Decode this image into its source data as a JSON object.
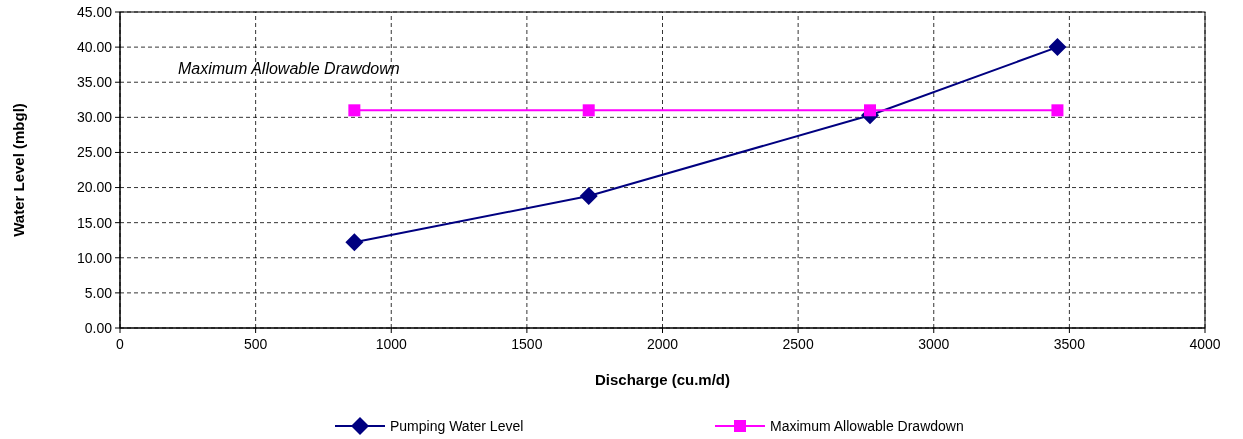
{
  "chart_data": {
    "type": "line",
    "xlabel": "Discharge (cu.m/d)",
    "ylabel": "Water Level (mbgl)",
    "annotations": [
      "Maximum Allowable Drawdown"
    ],
    "xlim": [
      0,
      4000
    ],
    "xticks": [
      0,
      500,
      1000,
      1500,
      2000,
      2500,
      3000,
      3500,
      4000
    ],
    "ylim": [
      0,
      45
    ],
    "yticks": [
      {
        "value": 0,
        "label": "0.00"
      },
      {
        "value": 5,
        "label": "5.00"
      },
      {
        "value": 10,
        "label": "10.00"
      },
      {
        "value": 15,
        "label": "15.00"
      },
      {
        "value": 20,
        "label": "20.00"
      },
      {
        "value": 25,
        "label": "25.00"
      },
      {
        "value": 30,
        "label": "30.00"
      },
      {
        "value": 35,
        "label": "35.00"
      },
      {
        "value": 40,
        "label": "40.00"
      },
      {
        "value": 45,
        "label": "45.00"
      }
    ],
    "grid": true,
    "legend": "bottom",
    "series": [
      {
        "name": "Pumping Water Level",
        "color": "#000080",
        "marker": "diamond",
        "x": [
          864,
          1728,
          2765,
          3456
        ],
        "values": [
          12.2,
          18.8,
          30.3,
          40.0
        ]
      },
      {
        "name": "Maximum Allowable Drawdown",
        "color": "#ff00ff",
        "marker": "square",
        "x": [
          864,
          1728,
          2765,
          3456
        ],
        "values": [
          31.0,
          31.0,
          31.0,
          31.0
        ]
      }
    ]
  }
}
